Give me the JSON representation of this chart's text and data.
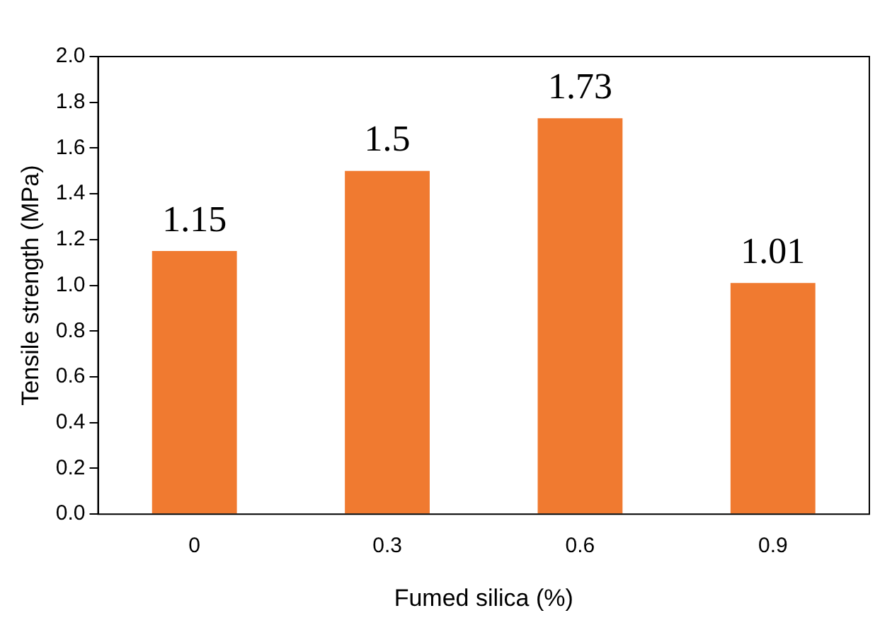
{
  "chart_data": {
    "type": "bar",
    "xlabel": "Fumed silica (%)",
    "ylabel": "Tensile strength (MPa)",
    "categories": [
      "0",
      "0.3",
      "0.6",
      "0.9"
    ],
    "values": [
      1.15,
      1.5,
      1.73,
      1.01
    ],
    "color": "#f07a30",
    "ylim": [
      0,
      2
    ],
    "yticks": [
      {
        "value": 0,
        "label": "0.0"
      },
      0.2,
      0.4,
      0.6,
      0.8,
      {
        "value": 1,
        "label": "1.0"
      },
      1.2,
      1.4,
      1.6,
      1.8,
      {
        "value": 2,
        "label": "2.0"
      }
    ],
    "grid": false,
    "legend": false,
    "data_labels": true
  }
}
